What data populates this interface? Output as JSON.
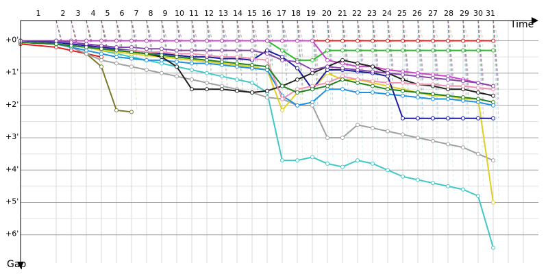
{
  "chart_data": {
    "type": "line",
    "xlabel": "Time",
    "ylabel": "Gap",
    "x_ticks": [
      "1",
      "2",
      "3",
      "4",
      "5",
      "6",
      "7",
      "8",
      "9",
      "10",
      "11",
      "12",
      "13",
      "14",
      "15",
      "16",
      "17",
      "18",
      "19",
      "20",
      "21",
      "22",
      "23",
      "24",
      "25",
      "26",
      "27",
      "28",
      "29",
      "30",
      "31"
    ],
    "y_ticks": [
      "+0'",
      "+1'",
      "+2'",
      "+3'",
      "+4'",
      "+5'",
      "+6'"
    ],
    "ylim": [
      0,
      6.4
    ],
    "grid": true,
    "series": [
      {
        "color": "#e01c1c",
        "values": [
          0.1,
          0.2,
          0.3,
          0.4,
          0.5
        ]
      },
      {
        "color": "#7a7a2a",
        "values": [
          0.05,
          0.1,
          0.2,
          0.4,
          0.8,
          2.15,
          2.2
        ]
      },
      {
        "color": "#e01c1c",
        "values": [
          0.0,
          0.0,
          0.0,
          0.0,
          0.0,
          0.0,
          0.0,
          0.0,
          0.0,
          0.0,
          0.0,
          0.0,
          0.0,
          0.0,
          0.0,
          0.0,
          0.0,
          0.0,
          0.0,
          0.0,
          0.0,
          0.0,
          0.0,
          0.0,
          0.0,
          0.0,
          0.0,
          0.0,
          0.0,
          0.0,
          0.0
        ]
      },
      {
        "color": "#22c022",
        "values": [
          0.0,
          0.0,
          0.0,
          0.0,
          0.0,
          0.0,
          0.0,
          0.0,
          0.0,
          0.0,
          0.0,
          0.0,
          0.0,
          0.0,
          0.0,
          0.0,
          0.3,
          0.6,
          0.6,
          0.3,
          0.3,
          0.3,
          0.3,
          0.3,
          0.3,
          0.3,
          0.3,
          0.3,
          0.3,
          0.3,
          0.3
        ]
      },
      {
        "color": "#40c8c8",
        "values": [
          0.05,
          0.1,
          0.15,
          0.2,
          0.3,
          0.4,
          0.5,
          0.6,
          0.7,
          0.8,
          0.9,
          1.0,
          1.1,
          1.2,
          1.3,
          1.6,
          3.7,
          3.7,
          3.6,
          3.8,
          3.9,
          3.7,
          3.8,
          4.0,
          4.2,
          4.3,
          4.4,
          4.5,
          4.6,
          4.8,
          6.4
        ]
      },
      {
        "color": "#a0a0a0",
        "values": [
          0.05,
          0.1,
          0.2,
          0.4,
          0.6,
          0.7,
          0.8,
          0.9,
          1.0,
          1.1,
          1.2,
          1.3,
          1.4,
          1.5,
          1.6,
          1.75,
          1.8,
          2.0,
          2.0,
          3.0,
          3.0,
          2.6,
          2.7,
          2.8,
          2.9,
          3.0,
          3.1,
          3.2,
          3.3,
          3.5,
          3.7
        ]
      },
      {
        "color": "#e0d020",
        "values": [
          0.05,
          0.1,
          0.15,
          0.2,
          0.3,
          0.35,
          0.4,
          0.45,
          0.5,
          0.55,
          0.6,
          0.65,
          0.7,
          0.75,
          0.8,
          0.9,
          2.15,
          1.6,
          1.5,
          1.0,
          1.2,
          1.2,
          1.3,
          1.4,
          1.5,
          1.6,
          1.7,
          1.7,
          1.8,
          1.8,
          5.0
        ]
      },
      {
        "color": "#1e90e0",
        "values": [
          0.05,
          0.1,
          0.2,
          0.3,
          0.4,
          0.5,
          0.55,
          0.6,
          0.6,
          0.65,
          0.7,
          0.7,
          0.75,
          0.8,
          0.85,
          0.9,
          1.7,
          2.0,
          1.9,
          1.5,
          1.5,
          1.6,
          1.6,
          1.65,
          1.7,
          1.75,
          1.8,
          1.8,
          1.85,
          1.9,
          2.0
        ]
      },
      {
        "color": "#1a1aa0",
        "values": [
          0.0,
          0.05,
          0.1,
          0.15,
          0.2,
          0.25,
          0.3,
          0.35,
          0.4,
          0.45,
          0.5,
          0.5,
          0.55,
          0.55,
          0.6,
          0.3,
          0.5,
          0.85,
          1.5,
          0.9,
          0.9,
          0.95,
          1.0,
          1.1,
          2.4,
          2.4,
          2.4,
          2.4,
          2.4,
          2.4,
          2.4
        ]
      },
      {
        "color": "#cc44cc",
        "values": [
          0.0,
          0.0,
          0.0,
          0.0,
          0.0,
          0.0,
          0.0,
          0.0,
          0.0,
          0.0,
          0.0,
          0.0,
          0.0,
          0.0,
          0.0,
          0.0,
          0.0,
          0.0,
          0.0,
          0.6,
          0.7,
          0.8,
          0.8,
          0.9,
          0.95,
          1.0,
          1.05,
          1.1,
          1.2,
          1.3,
          1.4
        ]
      },
      {
        "color": "#202020",
        "values": [
          0.05,
          0.1,
          0.15,
          0.2,
          0.25,
          0.3,
          0.35,
          0.4,
          0.5,
          0.8,
          1.5,
          1.5,
          1.5,
          1.55,
          1.6,
          1.55,
          1.4,
          1.2,
          1.0,
          0.8,
          0.6,
          0.7,
          0.8,
          1.0,
          1.2,
          1.35,
          1.4,
          1.5,
          1.5,
          1.6,
          1.7
        ]
      },
      {
        "color": "#f090b0",
        "values": [
          0.05,
          0.1,
          0.15,
          0.2,
          0.25,
          0.3,
          0.3,
          0.35,
          0.35,
          0.4,
          0.4,
          0.45,
          0.5,
          0.5,
          0.55,
          0.6,
          1.8,
          1.5,
          1.4,
          1.3,
          1.1,
          1.2,
          1.25,
          1.3,
          1.3,
          1.35,
          1.35,
          1.4,
          1.4,
          1.45,
          1.5
        ]
      },
      {
        "color": "#208020",
        "values": [
          0.05,
          0.1,
          0.15,
          0.2,
          0.25,
          0.3,
          0.35,
          0.4,
          0.45,
          0.5,
          0.55,
          0.6,
          0.65,
          0.7,
          0.75,
          0.8,
          1.4,
          1.6,
          1.5,
          1.4,
          1.2,
          1.3,
          1.4,
          1.5,
          1.55,
          1.6,
          1.65,
          1.7,
          1.75,
          1.8,
          1.9
        ]
      },
      {
        "color": "#8844aa",
        "values": [
          0.0,
          0.0,
          0.05,
          0.1,
          0.15,
          0.2,
          0.2,
          0.25,
          0.25,
          0.3,
          0.3,
          0.3,
          0.3,
          0.3,
          0.3,
          0.4,
          0.6,
          0.65,
          0.9,
          0.8,
          0.85,
          0.9,
          0.95,
          1.0,
          1.05,
          1.1,
          1.15,
          1.2,
          1.25,
          1.3,
          1.4
        ]
      }
    ]
  }
}
